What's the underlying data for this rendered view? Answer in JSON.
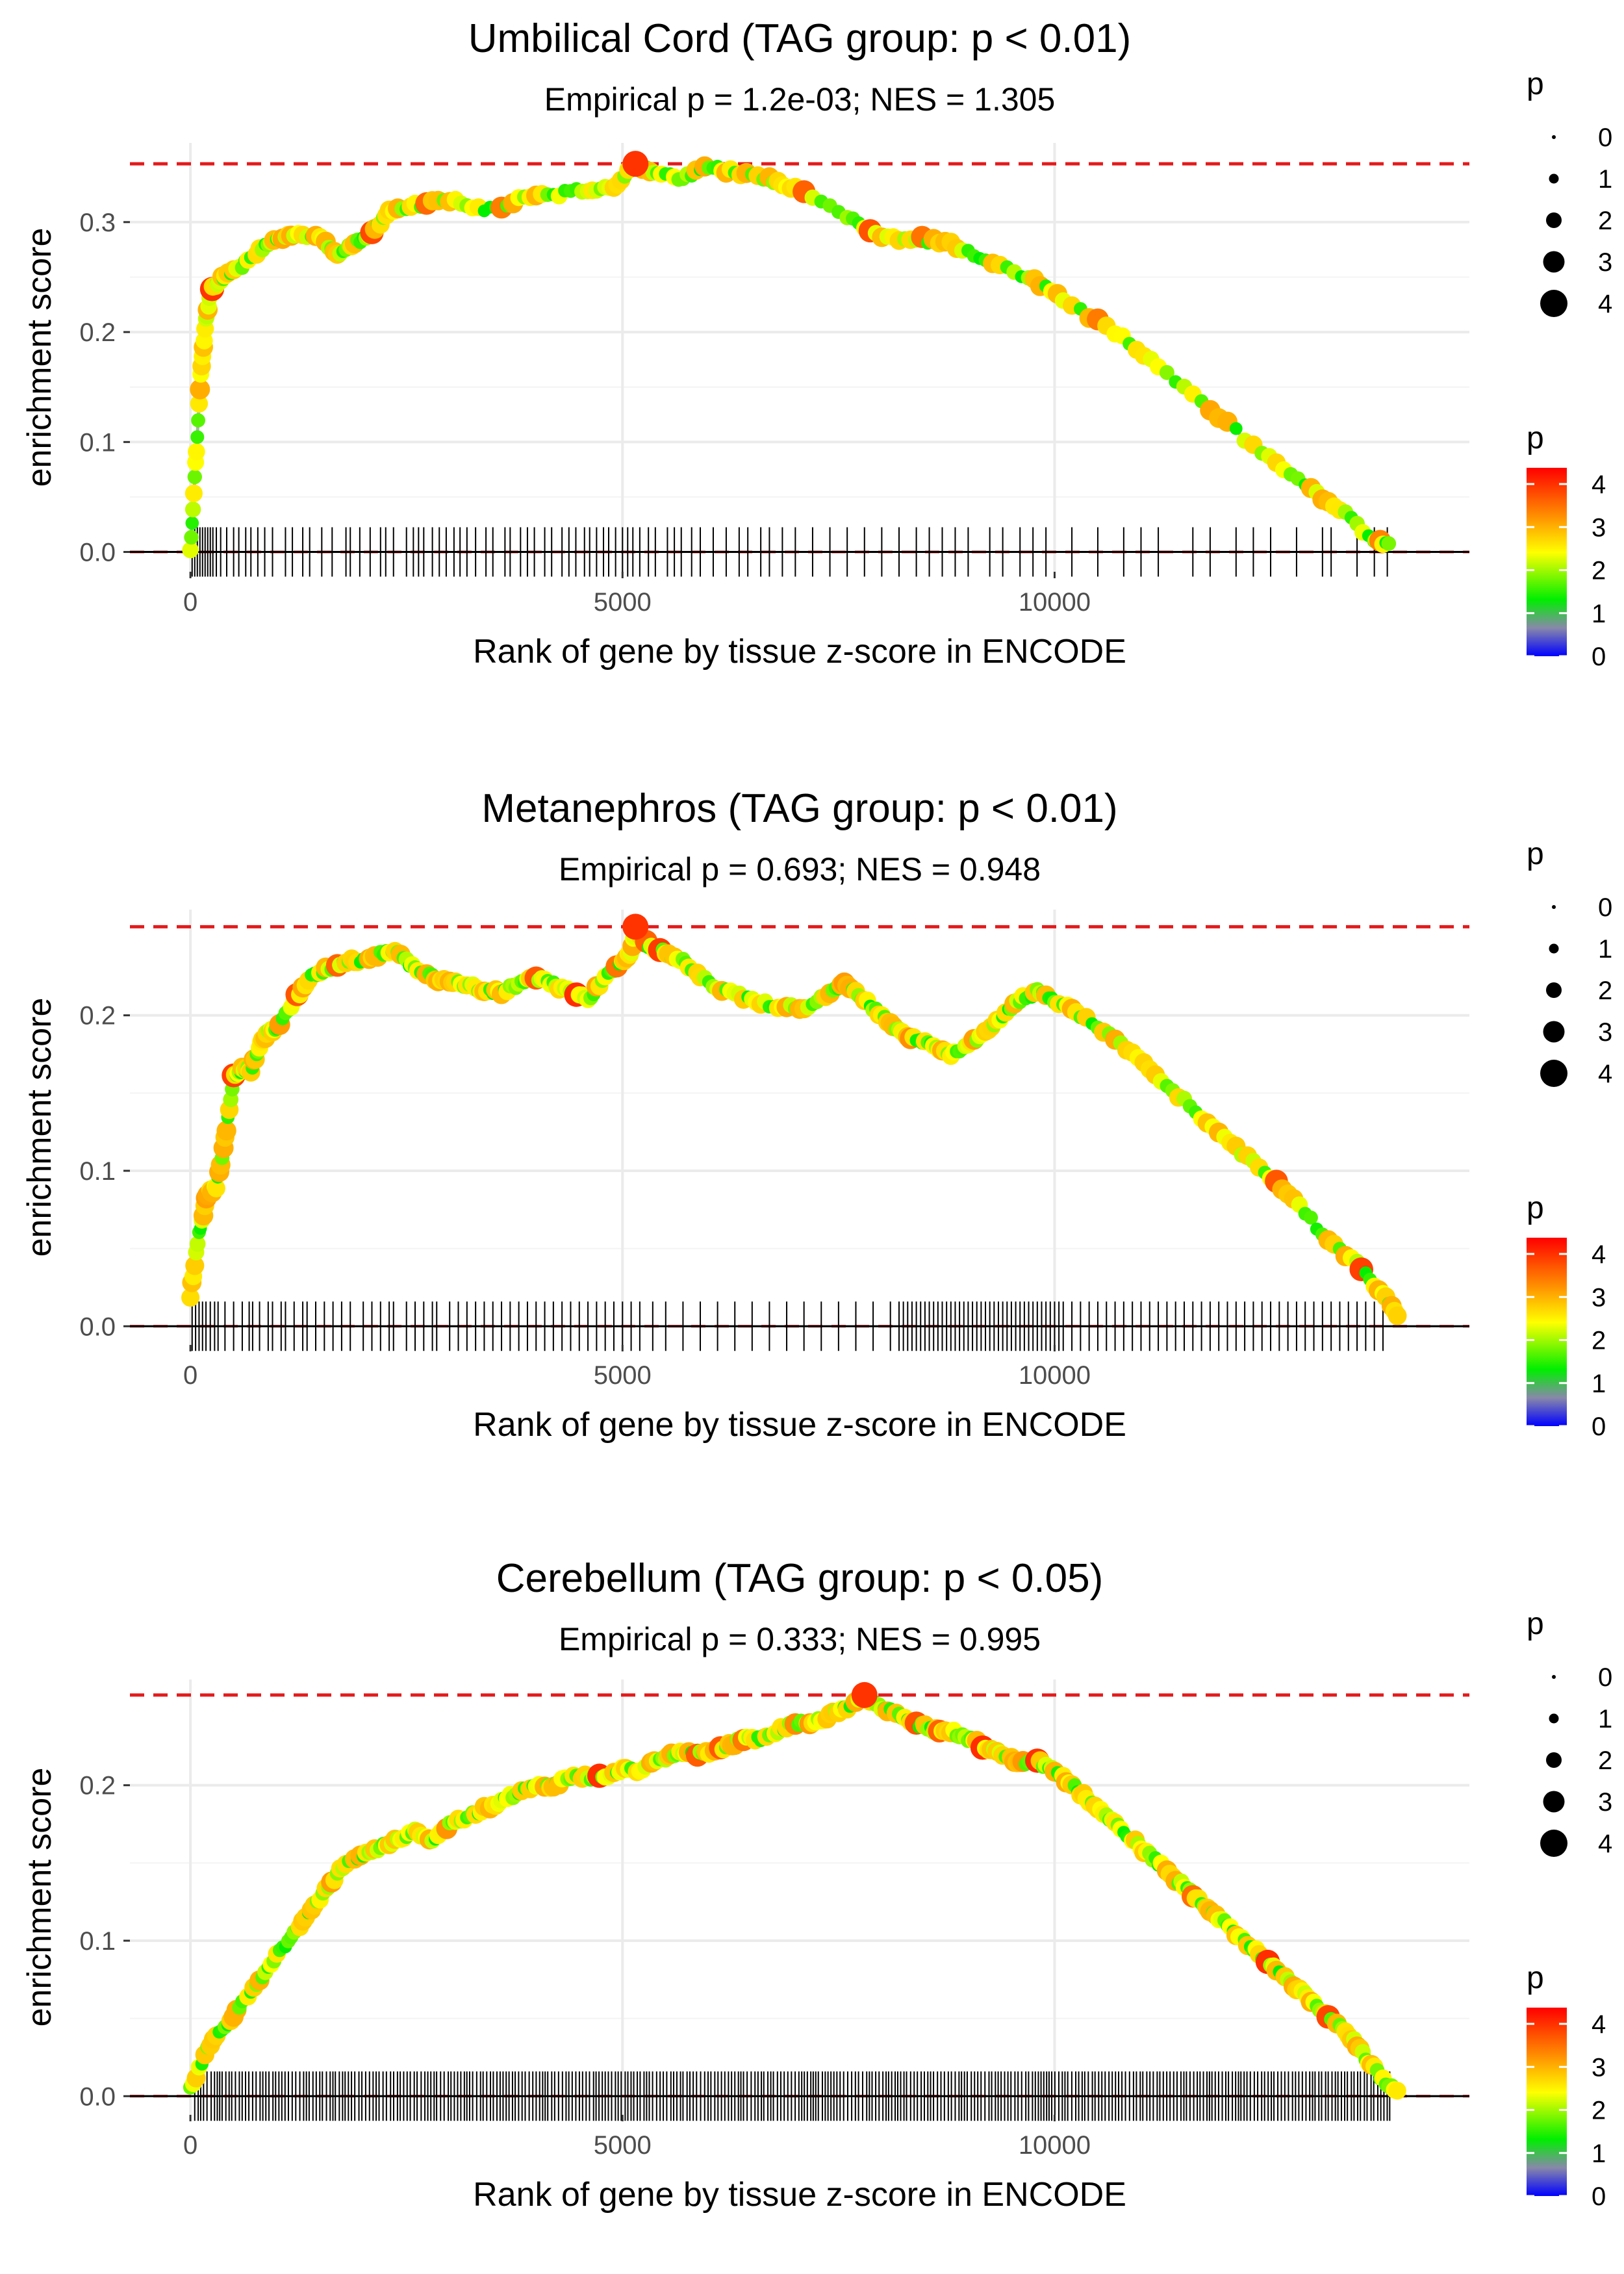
{
  "chart_data": [
    {
      "type": "line",
      "title": "Umbilical Cord (TAG group: p < 0.01)",
      "subtitle": "Empirical p = 1.2e-03; NES = 1.305",
      "xlabel": "Rank of gene by tissue z-score in ENCODE",
      "ylabel": "enrichment score",
      "xlim": [
        -700,
        14800
      ],
      "ylim": [
        -0.018,
        0.372
      ],
      "x_ticks": [
        0,
        5000,
        10000
      ],
      "x_tick_labels": [
        "0",
        "5000",
        "10000"
      ],
      "y_ticks": [
        0.0,
        0.1,
        0.2,
        0.3
      ],
      "y_tick_labels": [
        "0.0",
        "0.1",
        "0.2",
        "0.3"
      ],
      "max_es_line": 0.353,
      "series": [
        {
          "name": "running enrichment score",
          "x": [
            0,
            60,
            120,
            180,
            240,
            300,
            400,
            600,
            800,
            1000,
            1200,
            1500,
            1700,
            1900,
            2100,
            2300,
            2600,
            3000,
            3400,
            3800,
            4200,
            4600,
            4900,
            5150,
            5400,
            5700,
            6000,
            6300,
            6700,
            7000,
            7600,
            8000,
            8400,
            8800,
            9200,
            9700,
            10100,
            10700,
            11200,
            11800,
            12400,
            12900,
            13300,
            13700,
            13900
          ],
          "y": [
            0.0,
            0.08,
            0.16,
            0.21,
            0.24,
            0.245,
            0.25,
            0.26,
            0.275,
            0.285,
            0.29,
            0.285,
            0.27,
            0.28,
            0.29,
            0.31,
            0.315,
            0.32,
            0.31,
            0.32,
            0.325,
            0.33,
            0.33,
            0.353,
            0.345,
            0.34,
            0.35,
            0.345,
            0.34,
            0.33,
            0.305,
            0.285,
            0.285,
            0.28,
            0.265,
            0.25,
            0.23,
            0.2,
            0.17,
            0.13,
            0.09,
            0.06,
            0.04,
            0.01,
            0.005
          ]
        }
      ],
      "gene_hits_x": [
        20,
        50,
        80,
        110,
        140,
        170,
        200,
        230,
        260,
        300,
        350,
        420,
        500,
        560,
        640,
        700,
        780,
        860,
        950,
        1100,
        1180,
        1300,
        1380,
        1520,
        1640,
        1800,
        1850,
        1960,
        2080,
        2200,
        2260,
        2350,
        2500,
        2580,
        2640,
        2700,
        2800,
        2880,
        2960,
        3050,
        3120,
        3200,
        3300,
        3420,
        3500,
        3640,
        3700,
        3820,
        3900,
        3980,
        4100,
        4180,
        4300,
        4380,
        4460,
        4560,
        4620,
        4700,
        4780,
        4840,
        4920,
        5000,
        5060,
        5120,
        5200,
        5300,
        5380,
        5520,
        5600,
        5680,
        5800,
        5900,
        6050,
        6200,
        6350,
        6450,
        6600,
        6700,
        6850,
        7000,
        7200,
        7400,
        7600,
        7800,
        8000,
        8200,
        8400,
        8550,
        8700,
        8850,
        9000,
        9250,
        9400,
        9600,
        9750,
        9900,
        10200,
        10500,
        10800,
        11000,
        11200,
        11600,
        11800,
        12100,
        12300,
        12500,
        12800,
        13100,
        13200,
        13500,
        13700,
        13850
      ]
    },
    {
      "type": "line",
      "title": "Metanephros (TAG group: p < 0.01)",
      "subtitle": "Empirical p = 0.693; NES = 0.948",
      "xlabel": "Rank of gene by tissue z-score in ENCODE",
      "ylabel": "enrichment score",
      "xlim": [
        -700,
        14800
      ],
      "ylim": [
        -0.012,
        0.268
      ],
      "x_ticks": [
        0,
        5000,
        10000
      ],
      "x_tick_labels": [
        "0",
        "5000",
        "10000"
      ],
      "y_ticks": [
        0.0,
        0.1,
        0.2
      ],
      "y_tick_labels": [
        "0.0",
        "0.1",
        "0.2"
      ],
      "max_es_line": 0.257,
      "series": [
        {
          "name": "running enrichment score",
          "x": [
            0,
            100,
            200,
            300,
            400,
            500,
            600,
            700,
            800,
            900,
            1000,
            1200,
            1400,
            1600,
            1800,
            2000,
            2200,
            2400,
            2600,
            2800,
            3000,
            3200,
            3400,
            3600,
            3800,
            4000,
            4200,
            4400,
            4600,
            4800,
            5000,
            5100,
            5150,
            5300,
            5500,
            5700,
            5900,
            6200,
            6500,
            6800,
            7100,
            7400,
            7600,
            7800,
            8000,
            8200,
            8400,
            8600,
            8800,
            9000,
            9200,
            9400,
            9600,
            9800,
            10000,
            10300,
            10700,
            11100,
            11500,
            11900,
            12300,
            12700,
            13100,
            13500,
            13800,
            14000
          ],
          "y": [
            0.02,
            0.06,
            0.085,
            0.09,
            0.12,
            0.16,
            0.165,
            0.165,
            0.18,
            0.19,
            0.19,
            0.21,
            0.225,
            0.23,
            0.235,
            0.235,
            0.24,
            0.24,
            0.23,
            0.225,
            0.22,
            0.22,
            0.215,
            0.215,
            0.22,
            0.225,
            0.22,
            0.215,
            0.21,
            0.225,
            0.235,
            0.24,
            0.257,
            0.245,
            0.24,
            0.235,
            0.225,
            0.215,
            0.21,
            0.205,
            0.205,
            0.215,
            0.22,
            0.21,
            0.2,
            0.19,
            0.185,
            0.18,
            0.175,
            0.18,
            0.19,
            0.2,
            0.21,
            0.215,
            0.21,
            0.2,
            0.185,
            0.165,
            0.145,
            0.125,
            0.105,
            0.085,
            0.06,
            0.04,
            0.02,
            0.005
          ]
        }
      ],
      "gene_hits_x": [
        20,
        60,
        100,
        140,
        180,
        230,
        280,
        320,
        400,
        500,
        600,
        680,
        720,
        800,
        900,
        950,
        1050,
        1100,
        1200,
        1300,
        1350,
        1450,
        1550,
        1650,
        1750,
        1850,
        2000,
        2100,
        2200,
        2300,
        2350,
        2500,
        2600,
        2700,
        2800,
        2850,
        3000,
        3100,
        3200,
        3300,
        3400,
        3500,
        3600,
        3700,
        3800,
        3900,
        4000,
        4100,
        4200,
        4300,
        4400,
        4500,
        4600,
        4700,
        4800,
        4900,
        5000,
        5100,
        5200,
        5350,
        5500,
        5700,
        5900,
        6100,
        6300,
        6500,
        6700,
        6900,
        7100,
        7300,
        7500,
        7700,
        7900,
        8100,
        8200,
        8250,
        8300,
        8350,
        8400,
        8450,
        8500,
        8550,
        8600,
        8650,
        8700,
        8750,
        8800,
        8850,
        8900,
        8950,
        9000,
        9050,
        9100,
        9150,
        9200,
        9250,
        9300,
        9350,
        9400,
        9450,
        9500,
        9550,
        9600,
        9650,
        9700,
        9750,
        9800,
        9850,
        9900,
        9950,
        10000,
        10050,
        10100,
        10200,
        10300,
        10400,
        10500,
        10600,
        10700,
        10800,
        10900,
        11000,
        11100,
        11200,
        11300,
        11400,
        11500,
        11600,
        11700,
        11800,
        11900,
        12000,
        12100,
        12200,
        12300,
        12400,
        12500,
        12600,
        12700,
        12800,
        12900,
        13000,
        13100,
        13200,
        13300,
        13400,
        13500,
        13600,
        13700,
        13800
      ]
    },
    {
      "type": "line",
      "title": "Cerebellum (TAG group: p < 0.05)",
      "subtitle": "Empirical p = 0.333; NES = 0.995",
      "xlabel": "Rank of gene by tissue z-score in ENCODE",
      "ylabel": "enrichment score",
      "xlim": [
        -700,
        14800
      ],
      "ylim": [
        -0.012,
        0.268
      ],
      "x_ticks": [
        0,
        5000,
        10000
      ],
      "x_tick_labels": [
        "0",
        "5000",
        "10000"
      ],
      "y_ticks": [
        0.0,
        0.1,
        0.2
      ],
      "y_tick_labels": [
        "0.0",
        "0.1",
        "0.2"
      ],
      "max_es_line": 0.258,
      "series": [
        {
          "name": "running enrichment score",
          "x": [
            0,
            200,
            400,
            600,
            800,
            1000,
            1200,
            1400,
            1600,
            1800,
            2000,
            2200,
            2400,
            2600,
            2800,
            3000,
            3200,
            3400,
            3600,
            3800,
            4000,
            4200,
            4400,
            4600,
            4800,
            5000,
            5200,
            5400,
            5600,
            5800,
            6000,
            6200,
            6400,
            6600,
            6800,
            7000,
            7200,
            7400,
            7600,
            7800,
            8000,
            8200,
            8400,
            8600,
            8800,
            9000,
            9200,
            9400,
            9600,
            9800,
            10000,
            10200,
            10400,
            10600,
            10800,
            11000,
            11200,
            11400,
            11600,
            11800,
            12000,
            12200,
            12400,
            12600,
            12800,
            13000,
            13200,
            13400,
            13600,
            13800,
            14000
          ],
          "y": [
            0.005,
            0.03,
            0.045,
            0.06,
            0.075,
            0.09,
            0.105,
            0.12,
            0.135,
            0.15,
            0.155,
            0.16,
            0.165,
            0.17,
            0.165,
            0.175,
            0.18,
            0.185,
            0.19,
            0.195,
            0.2,
            0.2,
            0.205,
            0.205,
            0.205,
            0.21,
            0.21,
            0.215,
            0.22,
            0.22,
            0.22,
            0.225,
            0.23,
            0.23,
            0.235,
            0.24,
            0.24,
            0.245,
            0.25,
            0.258,
            0.25,
            0.245,
            0.24,
            0.235,
            0.235,
            0.23,
            0.225,
            0.22,
            0.215,
            0.215,
            0.21,
            0.2,
            0.19,
            0.18,
            0.17,
            0.16,
            0.15,
            0.14,
            0.13,
            0.12,
            0.11,
            0.1,
            0.09,
            0.08,
            0.07,
            0.06,
            0.05,
            0.04,
            0.025,
            0.01,
            0.002
          ]
        }
      ],
      "gene_hits_x": [],
      "gene_hits_note": "dense uniform hits from 50 to 13900"
    }
  ],
  "legends": {
    "size_legend": {
      "title": "p",
      "labels": [
        "0",
        "1",
        "2",
        "3",
        "4"
      ]
    },
    "color_legend": {
      "title": "p",
      "labels": [
        "4",
        "3",
        "2",
        "1",
        "0"
      ],
      "colors": [
        "#ff0000",
        "#ff8800",
        "#ffff00",
        "#00ee00",
        "#808080",
        "#0000ff"
      ]
    }
  },
  "colors": {
    "max_line": "#e41a1c",
    "curve": "#b0b0b0",
    "grid": "#ebebeb",
    "hits": "#000000"
  }
}
